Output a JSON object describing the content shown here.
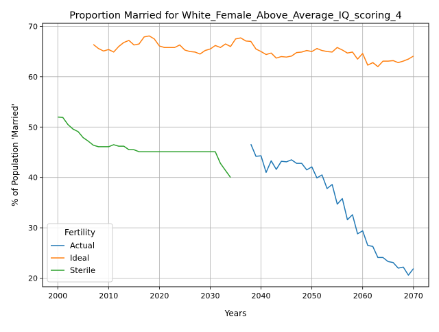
{
  "chart_data": {
    "type": "line",
    "title": "Proportion Married for White_Female_Above_Average_IQ_scoring_4",
    "xlabel": "Years",
    "ylabel": "% of Population 'Married'",
    "xlim": [
      1997,
      2073
    ],
    "ylim": [
      18.3,
      70.6
    ],
    "x_ticks": [
      2000,
      2010,
      2020,
      2030,
      2040,
      2050,
      2060,
      2070
    ],
    "y_ticks": [
      20,
      30,
      40,
      50,
      60,
      70
    ],
    "grid": true,
    "legend": {
      "title": "Fertility",
      "placement": "lower-left"
    },
    "series": [
      {
        "name": "Actual",
        "color": "#1f77b4",
        "x": [
          2038,
          2039,
          2040,
          2041,
          2042,
          2043,
          2044,
          2045,
          2046,
          2047,
          2048,
          2049,
          2050,
          2051,
          2052,
          2053,
          2054,
          2055,
          2056,
          2057,
          2058,
          2059,
          2060,
          2061,
          2062,
          2063,
          2064,
          2065,
          2066,
          2067,
          2068,
          2069,
          2070
        ],
        "values": [
          46.6,
          44.2,
          44.3,
          41.0,
          43.3,
          41.6,
          43.2,
          43.1,
          43.5,
          42.8,
          42.8,
          41.5,
          42.1,
          39.9,
          40.5,
          37.8,
          38.6,
          34.7,
          35.8,
          31.6,
          32.6,
          28.8,
          29.4,
          26.5,
          26.3,
          24.1,
          24.1,
          23.3,
          23.1,
          22.0,
          22.2,
          20.6,
          21.9
        ]
      },
      {
        "name": "Ideal",
        "color": "#ff7f0e",
        "x": [
          2007,
          2008,
          2009,
          2010,
          2011,
          2012,
          2013,
          2014,
          2015,
          2016,
          2017,
          2018,
          2019,
          2020,
          2021,
          2022,
          2023,
          2024,
          2025,
          2026,
          2027,
          2028,
          2029,
          2030,
          2031,
          2032,
          2033,
          2034,
          2035,
          2036,
          2037,
          2038,
          2039,
          2040,
          2041,
          2042,
          2043,
          2044,
          2045,
          2046,
          2047,
          2048,
          2049,
          2050,
          2051,
          2052,
          2053,
          2054,
          2055,
          2056,
          2057,
          2058,
          2059,
          2060,
          2061,
          2062,
          2063,
          2064,
          2065,
          2066,
          2067,
          2068,
          2069,
          2070
        ],
        "values": [
          66.4,
          65.6,
          65.1,
          65.4,
          64.9,
          66.0,
          66.8,
          67.2,
          66.3,
          66.5,
          67.9,
          68.1,
          67.5,
          66.1,
          65.8,
          65.8,
          65.8,
          66.3,
          65.3,
          65.0,
          64.9,
          64.5,
          65.2,
          65.5,
          66.2,
          65.8,
          66.5,
          66.0,
          67.5,
          67.7,
          67.1,
          67.0,
          65.5,
          65.0,
          64.4,
          64.7,
          63.7,
          64.0,
          63.9,
          64.1,
          64.8,
          64.9,
          65.2,
          65.0,
          65.6,
          65.2,
          65.0,
          64.9,
          65.8,
          65.3,
          64.7,
          64.9,
          63.5,
          64.6,
          62.3,
          62.8,
          62.0,
          63.1,
          63.1,
          63.2,
          62.8,
          63.1,
          63.5,
          64.1
        ]
      },
      {
        "name": "Sterile",
        "color": "#2ca02c",
        "x": [
          2000,
          2001,
          2002,
          2003,
          2004,
          2005,
          2006,
          2007,
          2008,
          2009,
          2010,
          2011,
          2012,
          2013,
          2014,
          2015,
          2016,
          2017,
          2018,
          2019,
          2020,
          2021,
          2022,
          2023,
          2024,
          2025,
          2026,
          2027,
          2028,
          2029,
          2030,
          2031,
          2032,
          2033,
          2034
        ],
        "values": [
          52.0,
          51.9,
          50.5,
          49.6,
          49.1,
          47.9,
          47.2,
          46.4,
          46.1,
          46.1,
          46.1,
          46.5,
          46.2,
          46.2,
          45.5,
          45.5,
          45.1,
          45.1,
          45.1,
          45.1,
          45.1,
          45.1,
          45.1,
          45.1,
          45.1,
          45.1,
          45.1,
          45.1,
          45.1,
          45.1,
          45.1,
          45.1,
          42.8,
          41.4,
          40.0
        ]
      }
    ]
  }
}
